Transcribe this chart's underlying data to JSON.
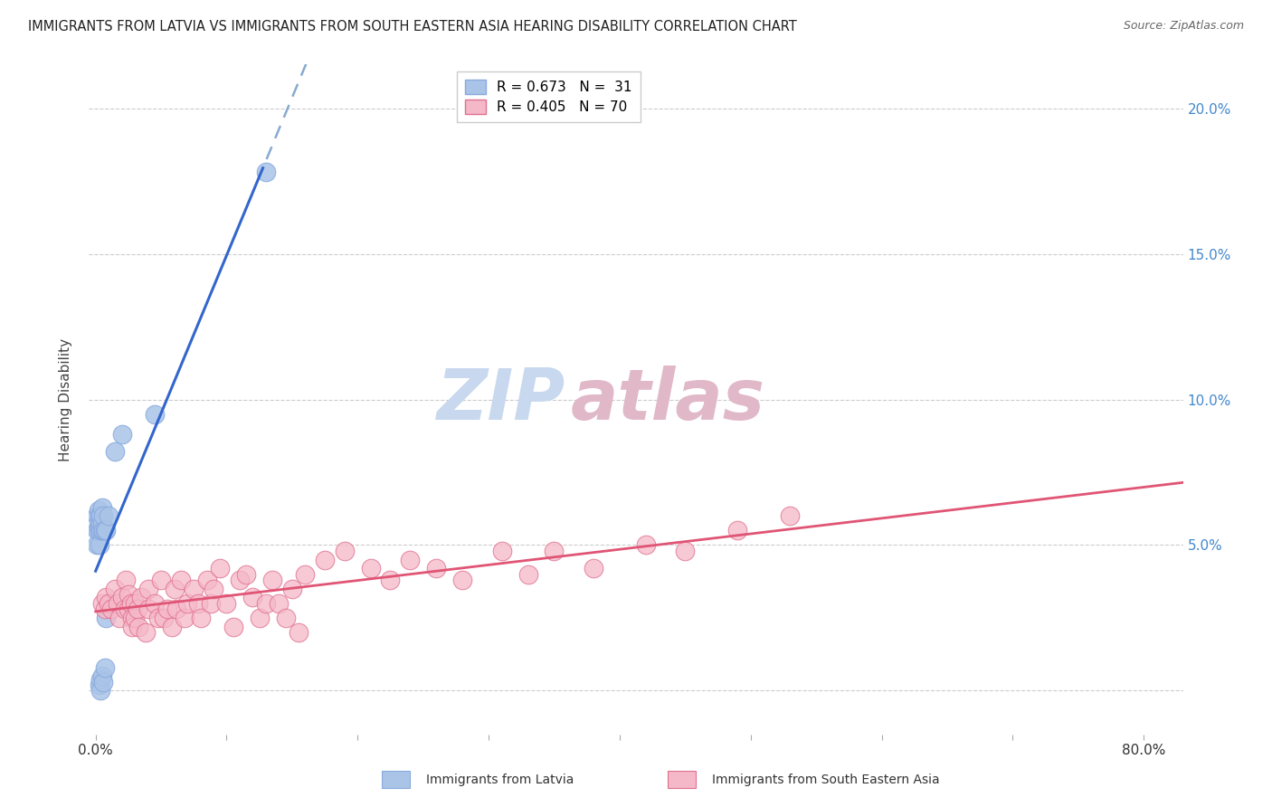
{
  "title": "IMMIGRANTS FROM LATVIA VS IMMIGRANTS FROM SOUTH EASTERN ASIA HEARING DISABILITY CORRELATION CHART",
  "source": "Source: ZipAtlas.com",
  "ylabel": "Hearing Disability",
  "ytick_values": [
    0.0,
    0.05,
    0.1,
    0.15,
    0.2
  ],
  "xtick_values": [
    0.0,
    0.1,
    0.2,
    0.3,
    0.4,
    0.5,
    0.6,
    0.7,
    0.8
  ],
  "xlim": [
    -0.005,
    0.83
  ],
  "ylim": [
    -0.015,
    0.215
  ],
  "watermark_zip": "ZIP",
  "watermark_atlas": "atlas",
  "watermark_color_zip": "#c8d8ee",
  "watermark_color_atlas": "#e0b8c8",
  "series1_color": "#aac4e8",
  "series1_edge_color": "#88aadd",
  "series1_line_color": "#3366cc",
  "series1_line_dashed_color": "#88aad0",
  "series2_fill_color": "#f5b8c8",
  "series2_edge_color": "#e07090",
  "series2_line_color": "#e05575",
  "legend_label1": "R = 0.673   N =  31",
  "legend_label2": "R = 0.405   N = 70",
  "bottom_label1": "Immigrants from Latvia",
  "bottom_label2": "Immigrants from South Eastern Asia",
  "latvia_x": [
    0.001,
    0.001,
    0.001,
    0.002,
    0.002,
    0.002,
    0.003,
    0.003,
    0.003,
    0.003,
    0.004,
    0.004,
    0.004,
    0.004,
    0.004,
    0.005,
    0.005,
    0.005,
    0.005,
    0.006,
    0.006,
    0.006,
    0.007,
    0.007,
    0.008,
    0.008,
    0.01,
    0.015,
    0.02,
    0.045,
    0.13
  ],
  "latvia_y": [
    0.05,
    0.055,
    0.06,
    0.055,
    0.058,
    0.062,
    0.05,
    0.056,
    0.06,
    0.002,
    0.055,
    0.058,
    0.06,
    0.004,
    0.0,
    0.055,
    0.058,
    0.063,
    0.005,
    0.055,
    0.06,
    0.003,
    0.055,
    0.008,
    0.055,
    0.025,
    0.06,
    0.082,
    0.088,
    0.095,
    0.178
  ],
  "sea_x": [
    0.005,
    0.007,
    0.008,
    0.01,
    0.012,
    0.015,
    0.017,
    0.018,
    0.02,
    0.022,
    0.023,
    0.025,
    0.025,
    0.027,
    0.028,
    0.028,
    0.03,
    0.03,
    0.032,
    0.033,
    0.035,
    0.038,
    0.04,
    0.04,
    0.045,
    0.048,
    0.05,
    0.052,
    0.055,
    0.058,
    0.06,
    0.062,
    0.065,
    0.068,
    0.07,
    0.075,
    0.078,
    0.08,
    0.085,
    0.088,
    0.09,
    0.095,
    0.1,
    0.105,
    0.11,
    0.115,
    0.12,
    0.125,
    0.13,
    0.135,
    0.14,
    0.145,
    0.15,
    0.155,
    0.16,
    0.175,
    0.19,
    0.21,
    0.225,
    0.24,
    0.26,
    0.28,
    0.31,
    0.33,
    0.35,
    0.38,
    0.42,
    0.45,
    0.49,
    0.53
  ],
  "sea_y": [
    0.03,
    0.028,
    0.032,
    0.03,
    0.028,
    0.035,
    0.03,
    0.025,
    0.032,
    0.028,
    0.038,
    0.033,
    0.028,
    0.03,
    0.025,
    0.022,
    0.03,
    0.025,
    0.028,
    0.022,
    0.032,
    0.02,
    0.035,
    0.028,
    0.03,
    0.025,
    0.038,
    0.025,
    0.028,
    0.022,
    0.035,
    0.028,
    0.038,
    0.025,
    0.03,
    0.035,
    0.03,
    0.025,
    0.038,
    0.03,
    0.035,
    0.042,
    0.03,
    0.022,
    0.038,
    0.04,
    0.032,
    0.025,
    0.03,
    0.038,
    0.03,
    0.025,
    0.035,
    0.02,
    0.04,
    0.045,
    0.048,
    0.042,
    0.038,
    0.045,
    0.042,
    0.038,
    0.048,
    0.04,
    0.048,
    0.042,
    0.05,
    0.048,
    0.055,
    0.06
  ]
}
